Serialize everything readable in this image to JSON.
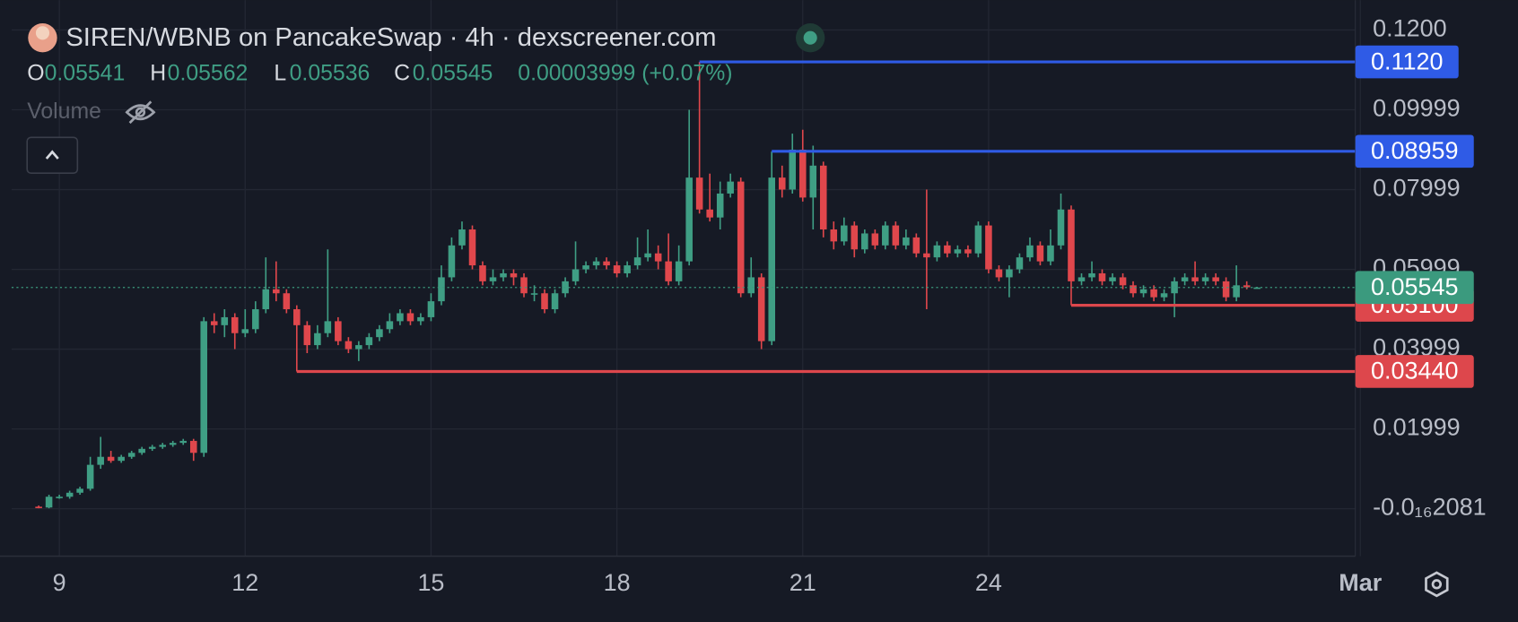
{
  "header": {
    "title": "SIREN/WBNB on PancakeSwap · 4h · dexscreener.com",
    "ohlc": [
      {
        "key": "O",
        "value": "0.05541"
      },
      {
        "key": "H",
        "value": "0.05562"
      },
      {
        "key": "L",
        "value": "0.05536"
      },
      {
        "key": "C",
        "value": "0.05545"
      }
    ],
    "change": "0.00003999 (+0.07%)",
    "volume_label": "Volume"
  },
  "chart_data": {
    "type": "candlestick",
    "up_color": "#3f9e84",
    "down_color": "#e0474c",
    "grid": true,
    "xlim": [
      8.23,
      29.92
    ],
    "ylim": [
      -0.0119,
      0.1275
    ],
    "xticks": [
      9,
      12,
      15,
      18,
      21,
      24,
      {
        "value": 30,
        "label": "Mar"
      }
    ],
    "yticks": [
      {
        "value": 0.12,
        "label": "0.1200"
      },
      0.09999,
      0.07999,
      0.05999,
      0.03999,
      0.01999,
      {
        "value": -2.081e-17,
        "label": "-0.0₁₆2081"
      }
    ],
    "x": [
      8.667,
      8.833,
      9,
      9.167,
      9.333,
      9.5,
      9.667,
      9.833,
      10,
      10.167,
      10.333,
      10.5,
      10.667,
      10.833,
      11,
      11.167,
      11.333,
      11.5,
      11.667,
      11.833,
      12,
      12.167,
      12.333,
      12.5,
      12.667,
      12.833,
      13,
      13.167,
      13.333,
      13.5,
      13.667,
      13.833,
      14,
      14.167,
      14.333,
      14.5,
      14.667,
      14.833,
      15,
      15.167,
      15.333,
      15.5,
      15.667,
      15.833,
      16,
      16.167,
      16.333,
      16.5,
      16.667,
      16.833,
      17,
      17.167,
      17.333,
      17.5,
      17.667,
      17.833,
      18,
      18.167,
      18.333,
      18.5,
      18.667,
      18.833,
      19,
      19.167,
      19.333,
      19.5,
      19.667,
      19.833,
      20,
      20.167,
      20.333,
      20.5,
      20.667,
      20.833,
      21,
      21.167,
      21.333,
      21.5,
      21.667,
      21.833,
      22,
      22.167,
      22.333,
      22.5,
      22.667,
      22.833,
      23,
      23.167,
      23.333,
      23.5,
      23.667,
      23.833,
      24,
      24.167,
      24.333,
      24.5,
      24.667,
      24.833,
      25,
      25.167,
      25.333,
      25.5,
      25.667,
      25.833,
      26,
      26.167,
      26.333,
      26.5,
      26.667,
      26.833,
      27,
      27.167,
      27.333,
      27.5,
      27.667,
      27.833,
      28,
      28.167,
      28.333
    ],
    "open": [
      0.0005,
      0.0003,
      0.003,
      0.003,
      0.004,
      0.005,
      0.011,
      0.013,
      0.012,
      0.013,
      0.014,
      0.015,
      0.0155,
      0.016,
      0.0165,
      0.017,
      0.014,
      0.047,
      0.046,
      0.048,
      0.044,
      0.045,
      0.05,
      0.055,
      0.054,
      0.05,
      0.046,
      0.041,
      0.044,
      0.047,
      0.042,
      0.04,
      0.041,
      0.043,
      0.045,
      0.047,
      0.049,
      0.047,
      0.048,
      0.052,
      0.058,
      0.066,
      0.07,
      0.061,
      0.057,
      0.058,
      0.059,
      0.058,
      0.054,
      0.054,
      0.05,
      0.054,
      0.057,
      0.06,
      0.061,
      0.062,
      0.061,
      0.059,
      0.061,
      0.063,
      0.064,
      0.062,
      0.057,
      0.062,
      0.083,
      0.075,
      0.073,
      0.079,
      0.082,
      0.054,
      0.058,
      0.042,
      0.083,
      0.08,
      0.09,
      0.078,
      0.086,
      0.07,
      0.067,
      0.071,
      0.065,
      0.069,
      0.066,
      0.071,
      0.066,
      0.068,
      0.064,
      0.063,
      0.066,
      0.064,
      0.065,
      0.064,
      0.071,
      0.06,
      0.058,
      0.06,
      0.063,
      0.066,
      0.062,
      0.066,
      0.075,
      0.057,
      0.058,
      0.059,
      0.057,
      0.058,
      0.056,
      0.054,
      0.055,
      0.053,
      0.054,
      0.057,
      0.058,
      0.057,
      0.058,
      0.057,
      0.053,
      0.056,
      0.05541
    ],
    "high": [
      0.0008,
      0.0035,
      0.0035,
      0.0045,
      0.0055,
      0.013,
      0.018,
      0.0145,
      0.0135,
      0.0145,
      0.0155,
      0.016,
      0.0165,
      0.017,
      0.0175,
      0.0175,
      0.048,
      0.049,
      0.05,
      0.049,
      0.05,
      0.052,
      0.063,
      0.062,
      0.055,
      0.051,
      0.047,
      0.046,
      0.065,
      0.048,
      0.043,
      0.042,
      0.044,
      0.046,
      0.049,
      0.05,
      0.05,
      0.049,
      0.054,
      0.061,
      0.068,
      0.072,
      0.071,
      0.062,
      0.06,
      0.06,
      0.06,
      0.059,
      0.056,
      0.055,
      0.055,
      0.058,
      0.067,
      0.062,
      0.063,
      0.063,
      0.062,
      0.062,
      0.068,
      0.07,
      0.066,
      0.069,
      0.066,
      0.1,
      0.112,
      0.084,
      0.082,
      0.084,
      0.083,
      0.063,
      0.059,
      0.08959,
      0.086,
      0.094,
      0.095,
      0.091,
      0.087,
      0.072,
      0.073,
      0.072,
      0.07,
      0.07,
      0.072,
      0.072,
      0.07,
      0.069,
      0.08,
      0.067,
      0.067,
      0.066,
      0.066,
      0.072,
      0.072,
      0.061,
      0.061,
      0.064,
      0.068,
      0.067,
      0.07,
      0.079,
      0.076,
      0.059,
      0.062,
      0.06,
      0.059,
      0.059,
      0.057,
      0.056,
      0.056,
      0.055,
      0.058,
      0.059,
      0.062,
      0.059,
      0.059,
      0.058,
      0.061,
      0.057,
      0.05562
    ],
    "low": [
      0.0001,
      0.0001,
      0.0025,
      0.0025,
      0.0035,
      0.0045,
      0.01,
      0.0115,
      0.0115,
      0.0125,
      0.0135,
      0.0145,
      0.015,
      0.0155,
      0.016,
      0.012,
      0.013,
      0.044,
      0.043,
      0.04,
      0.043,
      0.044,
      0.049,
      0.052,
      0.049,
      0.0344,
      0.039,
      0.04,
      0.043,
      0.041,
      0.039,
      0.037,
      0.04,
      0.042,
      0.044,
      0.046,
      0.046,
      0.046,
      0.047,
      0.051,
      0.057,
      0.065,
      0.06,
      0.056,
      0.056,
      0.057,
      0.056,
      0.053,
      0.052,
      0.049,
      0.049,
      0.053,
      0.056,
      0.059,
      0.06,
      0.06,
      0.058,
      0.058,
      0.06,
      0.062,
      0.06,
      0.056,
      0.056,
      0.061,
      0.074,
      0.072,
      0.07,
      0.078,
      0.053,
      0.053,
      0.04,
      0.041,
      0.078,
      0.079,
      0.077,
      0.07,
      0.068,
      0.065,
      0.066,
      0.063,
      0.064,
      0.065,
      0.065,
      0.065,
      0.065,
      0.063,
      0.05,
      0.062,
      0.063,
      0.063,
      0.063,
      0.063,
      0.059,
      0.057,
      0.053,
      0.059,
      0.062,
      0.061,
      0.061,
      0.065,
      0.051,
      0.056,
      0.057,
      0.056,
      0.056,
      0.055,
      0.053,
      0.053,
      0.052,
      0.052,
      0.048,
      0.056,
      0.056,
      0.056,
      0.056,
      0.052,
      0.052,
      0.055,
      0.05536
    ],
    "close": [
      0.0003,
      0.003,
      0.003,
      0.004,
      0.005,
      0.011,
      0.013,
      0.012,
      0.013,
      0.014,
      0.015,
      0.0155,
      0.016,
      0.0165,
      0.017,
      0.014,
      0.047,
      0.046,
      0.048,
      0.044,
      0.045,
      0.05,
      0.055,
      0.054,
      0.05,
      0.046,
      0.041,
      0.044,
      0.047,
      0.042,
      0.04,
      0.041,
      0.043,
      0.045,
      0.047,
      0.049,
      0.047,
      0.048,
      0.052,
      0.058,
      0.066,
      0.07,
      0.061,
      0.057,
      0.058,
      0.059,
      0.058,
      0.054,
      0.054,
      0.05,
      0.054,
      0.057,
      0.06,
      0.061,
      0.062,
      0.061,
      0.059,
      0.061,
      0.063,
      0.064,
      0.062,
      0.057,
      0.062,
      0.083,
      0.075,
      0.073,
      0.079,
      0.082,
      0.054,
      0.058,
      0.042,
      0.083,
      0.08,
      0.09,
      0.078,
      0.086,
      0.07,
      0.067,
      0.071,
      0.065,
      0.069,
      0.066,
      0.071,
      0.066,
      0.068,
      0.064,
      0.063,
      0.066,
      0.064,
      0.065,
      0.064,
      0.071,
      0.06,
      0.058,
      0.06,
      0.063,
      0.066,
      0.062,
      0.066,
      0.075,
      0.057,
      0.058,
      0.059,
      0.057,
      0.058,
      0.056,
      0.054,
      0.055,
      0.053,
      0.054,
      0.057,
      0.058,
      0.057,
      0.058,
      0.057,
      0.053,
      0.056,
      0.0555,
      0.05545
    ],
    "price_lines": [
      {
        "value": 0.112,
        "label": "0.1120",
        "color": "#2f5be6",
        "x": 19.333
      },
      {
        "value": 0.08959,
        "label": "0.08959",
        "color": "#2f5be6",
        "x": 20.5
      },
      {
        "value": 0.051,
        "label": "0.05100",
        "color": "#dd474c",
        "x": 25.333
      },
      {
        "value": 0.0344,
        "label": "0.03440",
        "color": "#dd474c",
        "x": 12.833
      }
    ],
    "last_price": {
      "value": 0.05545,
      "label": "0.05545",
      "color": "#3b9a7e"
    }
  }
}
